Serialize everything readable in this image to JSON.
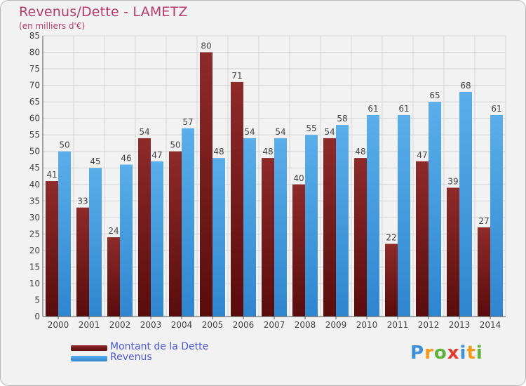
{
  "title": "Revenus/Dette - LAMETZ",
  "subtitle": "(en milliers d'€)",
  "logo_text": "Proxiti",
  "colors": {
    "title": "#b43a6a",
    "legend_text": "#4a58d6",
    "dette": "#7a1a1a",
    "revenus": "#3e9be0",
    "grid": "#d6d6d6",
    "axis_text": "#444444"
  },
  "chart_data": {
    "type": "bar",
    "title": "Revenus/Dette - LAMETZ",
    "subtitle": "(en milliers d'€)",
    "categories": [
      "2000",
      "2001",
      "2002",
      "2003",
      "2004",
      "2005",
      "2006",
      "2007",
      "2008",
      "2009",
      "2010",
      "2011",
      "2012",
      "2013",
      "2014"
    ],
    "series": [
      {
        "name": "Montant de la Dette",
        "values": [
          41,
          33,
          24,
          54,
          50,
          80,
          71,
          48,
          40,
          54,
          48,
          22,
          47,
          39,
          27
        ]
      },
      {
        "name": "Revenus",
        "values": [
          50,
          45,
          46,
          47,
          57,
          48,
          54,
          54,
          55,
          58,
          61,
          61,
          65,
          68,
          61
        ]
      }
    ],
    "ylim": [
      0,
      85
    ],
    "yticks": [
      0,
      5,
      10,
      15,
      20,
      25,
      30,
      35,
      40,
      45,
      50,
      55,
      60,
      65,
      70,
      75,
      80,
      85
    ],
    "grid": true,
    "legend_position": "bottom-left",
    "data_labels": true
  }
}
